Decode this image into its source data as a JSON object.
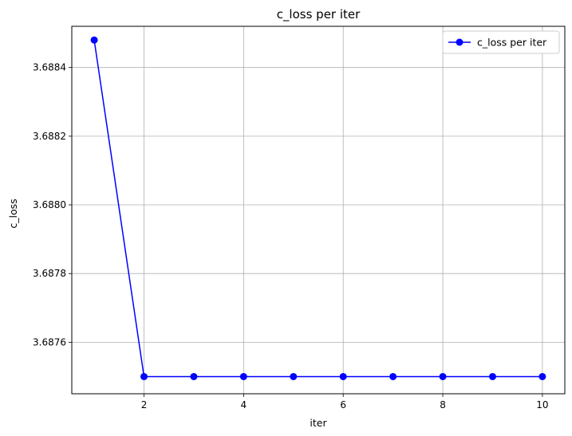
{
  "chart_data": {
    "type": "line",
    "title": "c_loss per iter",
    "xlabel": "iter",
    "ylabel": "c_loss",
    "xlim": [
      0.55,
      10.45
    ],
    "ylim": [
      3.68745,
      3.68852
    ],
    "xticks": [
      2,
      4,
      6,
      8,
      10
    ],
    "xtick_labels": [
      "2",
      "4",
      "6",
      "8",
      "10"
    ],
    "yticks": [
      3.6876,
      3.6878,
      3.688,
      3.6882,
      3.6884
    ],
    "ytick_labels": [
      "3.6876",
      "3.6878",
      "3.6880",
      "3.6882",
      "3.6884"
    ],
    "grid": true,
    "legend_position": "top-right",
    "series": [
      {
        "name": "c_loss per iter",
        "color": "#0000ff",
        "marker": "circle",
        "x": [
          1,
          2,
          3,
          4,
          5,
          6,
          7,
          8,
          9,
          10
        ],
        "y": [
          3.68848,
          3.6875,
          3.6875,
          3.6875,
          3.6875,
          3.6875,
          3.6875,
          3.6875,
          3.6875,
          3.6875
        ]
      }
    ]
  }
}
